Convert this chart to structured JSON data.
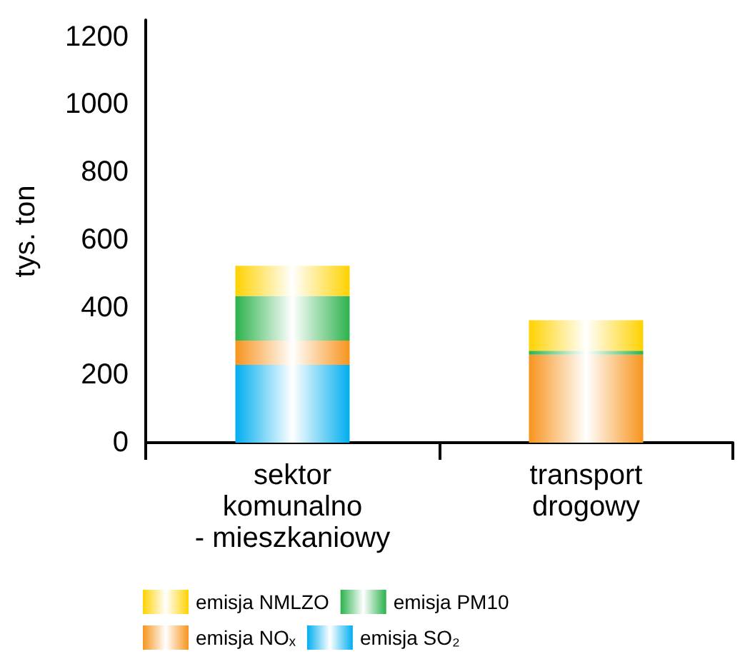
{
  "chart_data": {
    "type": "bar",
    "stacked": true,
    "ylabel": "tys. ton",
    "categories": [
      "sektor\nkomunalno\n- mieszkaniowy",
      "transport\ndrogowy"
    ],
    "series": [
      {
        "name": "emisja SO₂",
        "color": "#00aeef",
        "values": [
          230,
          null
        ]
      },
      {
        "name": "emisja NOₓ",
        "color": "#f7941d",
        "values": [
          72,
          260
        ]
      },
      {
        "name": "emisja PM10",
        "color": "#2bb24c",
        "values": [
          132,
          12
        ]
      },
      {
        "name": "emisja NMLZO",
        "color": "#ffd200",
        "values": [
          89,
          90
        ]
      }
    ],
    "ylim": [
      0,
      1250
    ],
    "yticks": [
      0,
      200,
      400,
      600,
      800,
      1000,
      1200
    ],
    "grid": false,
    "legend": "bottom"
  }
}
